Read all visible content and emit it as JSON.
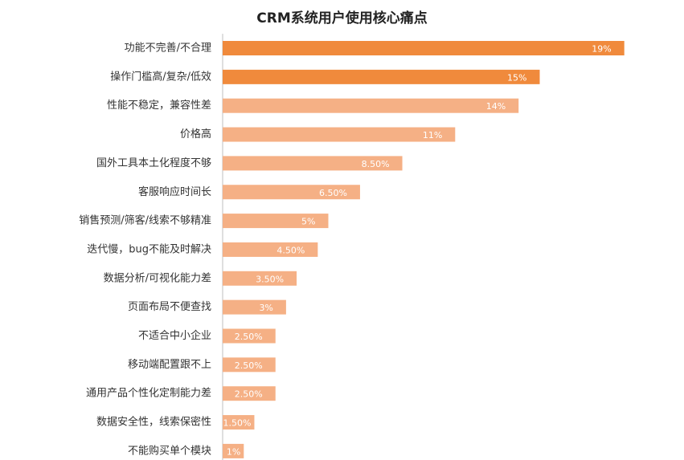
{
  "chart_data": {
    "type": "bar",
    "orientation": "horizontal",
    "title": "CRM系统用户使用核心痛点",
    "xlabel": "",
    "ylabel": "",
    "xlim": [
      0,
      20
    ],
    "grid": false,
    "legend": "none",
    "colors": {
      "highlight": "#f08a3c",
      "normal": "#f5b085",
      "bar_label": "#ffffff",
      "category_label": "#333333",
      "axis_line": "#bfbfbf"
    },
    "highlight_count": 2,
    "categories": [
      "功能不完善/不合理",
      "操作门槛高/复杂/低效",
      "性能不稳定，兼容性差",
      "价格高",
      "国外工具本土化程度不够",
      "客服响应时间长",
      "销售预测/筛客/线索不够精准",
      "迭代慢，bug不能及时解决",
      "数据分析/可视化能力差",
      "页面布局不便查找",
      "不适合中小企业",
      "移动端配置跟不上",
      "通用产品个性化定制能力差",
      "数据安全性，线索保密性",
      "不能购买单个模块"
    ],
    "values": [
      19,
      15,
      14,
      11,
      8.5,
      6.5,
      5,
      4.5,
      3.5,
      3,
      2.5,
      2.5,
      2.5,
      1.5,
      1
    ],
    "value_labels": [
      "19%",
      "15%",
      "14%",
      "11%",
      "8.50%",
      "6.50%",
      "5%",
      "4.50%",
      "3.50%",
      "3%",
      "2.50%",
      "2.50%",
      "2.50%",
      "1.50%",
      "1%"
    ]
  }
}
